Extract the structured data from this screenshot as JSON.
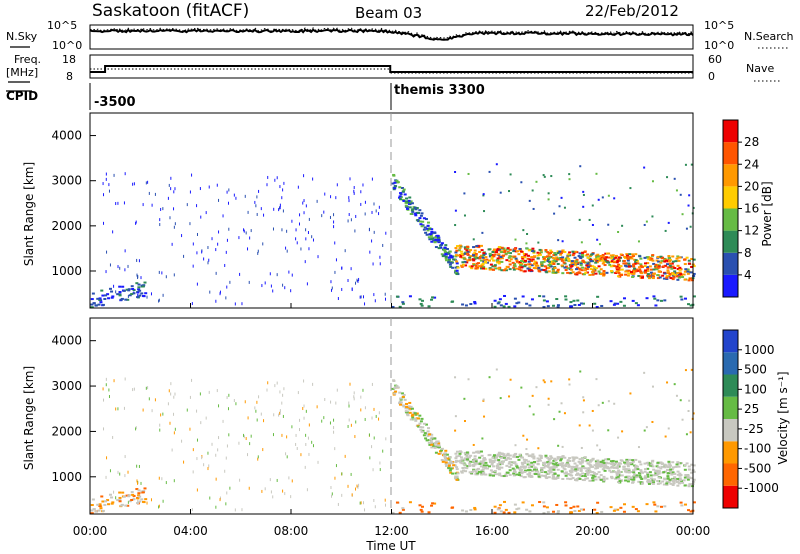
{
  "header": {
    "title": "Saskatoon (fitACF)",
    "beam": "Beam 03",
    "date": "22/Feb/2012"
  },
  "colors": {
    "power_scale": [
      "#1a1aff",
      "#2a50b0",
      "#2e8b57",
      "#66bb44",
      "#ffcc00",
      "#ff9900",
      "#ff5500",
      "#ee0000"
    ],
    "velocity_scale": [
      "#2244cc",
      "#2a6ab0",
      "#2e8b57",
      "#66bb44",
      "#c8c8c0",
      "#ff9900",
      "#ff6600",
      "#ee0000"
    ]
  },
  "chart_data": [
    {
      "type": "line",
      "name": "noise-panel",
      "left_label": "N.Sky",
      "right_label": "N.Search",
      "y_ticks_left": [
        "10^5",
        "10^0"
      ],
      "y_ticks_right": [
        "10^5",
        "10^0"
      ]
    },
    {
      "type": "line",
      "name": "freq-panel",
      "left_label_1": "Freq.",
      "left_label_2": "[MHz]",
      "right_label": "Nave",
      "y_ticks_left": [
        "18",
        "8"
      ],
      "y_ticks_right": [
        "60",
        "0"
      ]
    },
    {
      "type": "table",
      "name": "cpid-strip",
      "label": "CPID",
      "entries": [
        {
          "start_hour": 0,
          "text": "-3500"
        },
        {
          "start_hour": 12,
          "text": "themis 3300"
        }
      ]
    },
    {
      "type": "heatmap",
      "name": "power-panel",
      "ylabel": "Slant Range [km]",
      "y_ticks": [
        "4000",
        "3000",
        "2000",
        "1000"
      ],
      "y_range_km": [
        180,
        4500
      ],
      "colorbar_label": "Power [dB]",
      "colorbar_ticks": [
        "28",
        "24",
        "20",
        "16",
        "12",
        "8",
        "4"
      ],
      "colorbar_range_db": [
        0,
        32
      ]
    },
    {
      "type": "heatmap",
      "name": "velocity-panel",
      "ylabel": "Slant Range [km]",
      "y_ticks": [
        "4000",
        "3000",
        "2000",
        "1000"
      ],
      "y_range_km": [
        180,
        4500
      ],
      "colorbar_label": "Velocity  [m s⁻¹]",
      "colorbar_ticks": [
        "1000",
        "500",
        "100",
        "25",
        "-25",
        "-100",
        "-500",
        "-1000"
      ]
    }
  ],
  "x_axis": {
    "label": "Time UT",
    "ticks": [
      "00:00",
      "04:00",
      "08:00",
      "12:00",
      "16:00",
      "20:00",
      "00:00"
    ],
    "range_hours": [
      0,
      24
    ]
  }
}
